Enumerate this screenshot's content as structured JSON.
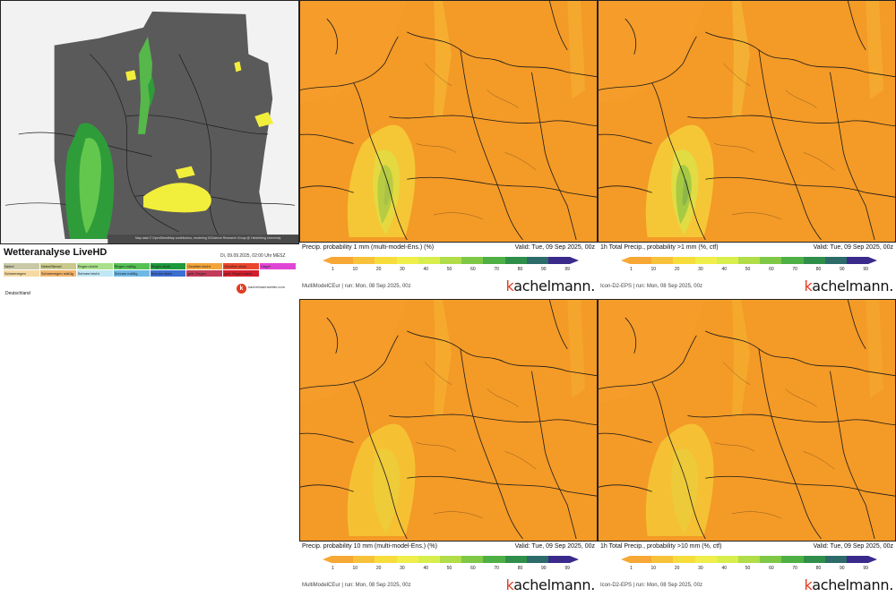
{
  "live": {
    "title": "Wetteranalyse LiveHD",
    "timestamp": "Di, 09.09.2025, 02:00 Uhr MESZ",
    "attribution": "Map data © OpenStreetMap contributors, rendering GIScience Research Group @ Heidelberg University",
    "region": "Deutschland",
    "logo_text": "kachelmannwetter.com",
    "legend": [
      {
        "label": "Nebel",
        "color": "#c9c9a8"
      },
      {
        "label": "Nebel/Niesel",
        "color": "#c9c98c"
      },
      {
        "label": "Regen leicht",
        "color": "#a9e08c"
      },
      {
        "label": "Regen mäßig",
        "color": "#55c155"
      },
      {
        "label": "Regen stark",
        "color": "#1e9a3c"
      },
      {
        "label": "Gewitter leicht",
        "color": "#f2a43a"
      },
      {
        "label": "Gewitter stark",
        "color": "#e8452c"
      },
      {
        "label": "Hagel",
        "color": "#e046d6"
      },
      {
        "label": "Schneeregen",
        "color": "#f4d9a0"
      },
      {
        "label": "Schneeregen mäßig",
        "color": "#f2b46a"
      },
      {
        "label": "Schnee leicht",
        "color": "#bfe7f5"
      },
      {
        "label": "Schnee mäßig",
        "color": "#6fb8e6"
      },
      {
        "label": "Schnee stark",
        "color": "#3b6fd0"
      },
      {
        "label": "gefr. Regen",
        "color": "#c33b5a"
      },
      {
        "label": "gefr. Regen stark",
        "color": "#d41e2e"
      },
      {
        "label": "",
        "color": "#ffffff"
      }
    ]
  },
  "panels": [
    {
      "id": "p1",
      "title": "Precip. probability 1 mm (multi-model-Ens.) (%)",
      "valid": "Valid: Tue, 09 Sep 2025, 00z",
      "run": "MultiModelCEur | run: Mon, 08 Sep 2025, 00z",
      "ticks": [
        "1",
        "10",
        "20",
        "30",
        "40",
        "50",
        "60",
        "70",
        "80",
        "90",
        "99"
      ],
      "rain_probability_percent": 60
    },
    {
      "id": "p2",
      "title": "1h Total Precip., probability >1 mm (%, ctf)",
      "valid": "Valid: Tue, 09 Sep 2025, 00z",
      "run": "Icon-D2-EPS | run: Mon, 08 Sep 2025, 00z",
      "ticks": [
        "1",
        "10",
        "20",
        "30",
        "40",
        "50",
        "60",
        "70",
        "80",
        "90",
        "99"
      ],
      "rain_probability_percent": 70
    },
    {
      "id": "p3",
      "title": "Precip. probability 10 mm (multi-model-Ens.) (%)",
      "valid": "Valid: Tue, 09 Sep 2025, 00z",
      "run": "MultiModelCEur | run: Mon, 08 Sep 2025, 00z",
      "ticks": [
        "1",
        "10",
        "20",
        "30",
        "40",
        "50",
        "60",
        "70",
        "80",
        "90",
        "99"
      ],
      "rain_probability_percent": 30
    },
    {
      "id": "p4",
      "title": "1h Total Precip., probability >10 mm (%, ctf)",
      "valid": "Valid: Tue, 09 Sep 2025, 00z",
      "run": "Icon-D2-EPS | run: Mon, 08 Sep 2025, 00z",
      "ticks": [
        "1",
        "10",
        "20",
        "30",
        "40",
        "50",
        "60",
        "70",
        "80",
        "90",
        "99"
      ],
      "rain_probability_percent": 25
    }
  ],
  "brand": {
    "k": "k",
    "rest": "achelmann."
  },
  "colorbar": [
    "#f7a734",
    "#f7c23a",
    "#f6dd3c",
    "#f0ee4a",
    "#d8ee4c",
    "#b0dd48",
    "#7ec846",
    "#4eaf44",
    "#2f8f4a",
    "#2d6a6a",
    "#3a2a8c"
  ]
}
